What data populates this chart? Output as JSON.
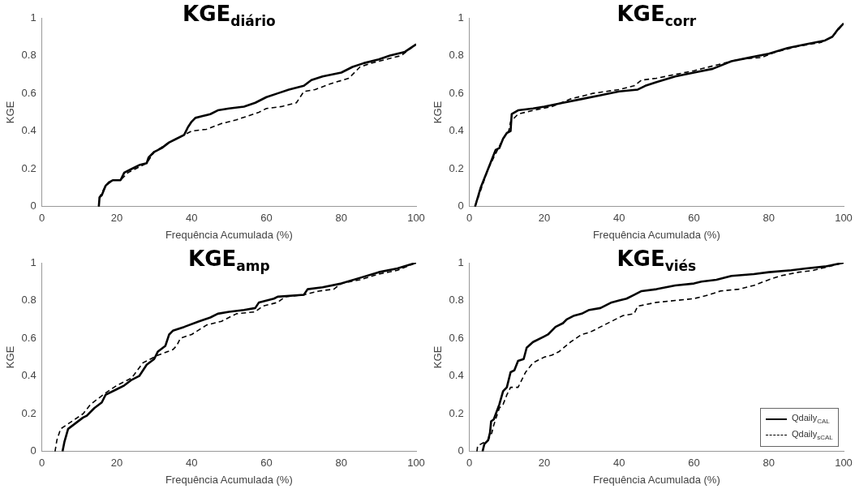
{
  "chart_data": [
    {
      "type": "line",
      "title": "KGE$_{diário}$",
      "xlabel": "Frequência Acumulada (%)",
      "ylabel": "KGE",
      "xlim": [
        0,
        100
      ],
      "ylim": [
        0,
        1
      ],
      "xticks": [
        0,
        20,
        40,
        60,
        80,
        100
      ],
      "yticks": [
        0,
        0.2,
        0.4,
        0.6,
        0.8,
        1
      ],
      "grid": false,
      "legend": false,
      "series": [
        {
          "color": "#000000",
          "line_style": "solid",
          "x": [
            15.2,
            15.4,
            16,
            17,
            18,
            19,
            21,
            22,
            24,
            26,
            28,
            28.5,
            30,
            32,
            34,
            36,
            38,
            39,
            40,
            41,
            43,
            45,
            47,
            50,
            54,
            57,
            60,
            63,
            66,
            70,
            72,
            75,
            80,
            83,
            86,
            90,
            93,
            97,
            100
          ],
          "values": [
            0,
            0.05,
            0.06,
            0.11,
            0.13,
            0.14,
            0.14,
            0.18,
            0.2,
            0.22,
            0.23,
            0.26,
            0.29,
            0.31,
            0.34,
            0.36,
            0.38,
            0.42,
            0.45,
            0.47,
            0.48,
            0.49,
            0.51,
            0.52,
            0.53,
            0.55,
            0.58,
            0.6,
            0.62,
            0.64,
            0.67,
            0.69,
            0.71,
            0.74,
            0.76,
            0.78,
            0.8,
            0.82,
            0.86
          ]
        },
        {
          "color": "#000000",
          "line_style": "dashed",
          "x": [
            15.2,
            15.4,
            17,
            19,
            21,
            23,
            25,
            28,
            30,
            34,
            38,
            40,
            44,
            48,
            52,
            55,
            58,
            60,
            64,
            68,
            70,
            73,
            77,
            82,
            85,
            88,
            92,
            96,
            100
          ],
          "values": [
            0,
            0.05,
            0.11,
            0.14,
            0.14,
            0.18,
            0.2,
            0.23,
            0.29,
            0.34,
            0.38,
            0.4,
            0.41,
            0.44,
            0.46,
            0.48,
            0.5,
            0.52,
            0.53,
            0.55,
            0.61,
            0.62,
            0.65,
            0.68,
            0.74,
            0.76,
            0.78,
            0.8,
            0.86
          ]
        }
      ]
    },
    {
      "type": "line",
      "title": "KGE$_{corr}$",
      "xlabel": "Frequência Acumulada (%)",
      "ylabel": "KGE",
      "xlim": [
        0,
        100
      ],
      "ylim": [
        0,
        1
      ],
      "xticks": [
        0,
        20,
        40,
        60,
        80,
        100
      ],
      "yticks": [
        0,
        0.2,
        0.4,
        0.6,
        0.8,
        1
      ],
      "grid": false,
      "legend": false,
      "series": [
        {
          "color": "#000000",
          "line_style": "solid",
          "x": [
            1.5,
            3,
            5,
            7,
            8,
            9,
            10,
            11,
            11.3,
            13,
            17,
            20,
            25,
            30,
            35,
            40,
            45,
            47,
            50,
            55,
            60,
            65,
            70,
            75,
            80,
            85,
            90,
            95,
            97,
            98.5,
            100
          ],
          "values": [
            0,
            0.1,
            0.2,
            0.3,
            0.31,
            0.36,
            0.39,
            0.4,
            0.49,
            0.51,
            0.52,
            0.53,
            0.55,
            0.57,
            0.59,
            0.61,
            0.62,
            0.64,
            0.66,
            0.69,
            0.71,
            0.73,
            0.77,
            0.79,
            0.81,
            0.84,
            0.86,
            0.88,
            0.9,
            0.94,
            0.97
          ]
        },
        {
          "color": "#000000",
          "line_style": "dashed",
          "x": [
            1.5,
            5,
            9,
            10.5,
            11,
            13,
            17,
            22,
            27,
            33,
            40,
            44,
            46,
            50,
            55,
            60,
            66,
            72,
            78,
            82,
            88,
            94,
            97,
            100
          ],
          "values": [
            0,
            0.2,
            0.36,
            0.4,
            0.45,
            0.49,
            0.51,
            0.53,
            0.57,
            0.6,
            0.62,
            0.64,
            0.67,
            0.68,
            0.7,
            0.72,
            0.75,
            0.78,
            0.79,
            0.82,
            0.85,
            0.87,
            0.9,
            0.97
          ]
        }
      ]
    },
    {
      "type": "line",
      "title": "KGE$_{amp}$",
      "xlabel": "Frequência Acumulada (%)",
      "ylabel": "KGE",
      "xlim": [
        0,
        100
      ],
      "ylim": [
        0,
        1
      ],
      "xticks": [
        0,
        20,
        40,
        60,
        80,
        100
      ],
      "yticks": [
        0,
        0.2,
        0.4,
        0.6,
        0.8,
        1
      ],
      "grid": false,
      "legend": false,
      "series": [
        {
          "color": "#000000",
          "line_style": "solid",
          "x": [
            5.5,
            6,
            7,
            9,
            11,
            12,
            14,
            16,
            17,
            20,
            22,
            24,
            26,
            28,
            30,
            31,
            33,
            34,
            35,
            38,
            42,
            45,
            47,
            50,
            54,
            57,
            58,
            62,
            63,
            70,
            71,
            75,
            80,
            85,
            90,
            95,
            100
          ],
          "values": [
            0,
            0.05,
            0.12,
            0.15,
            0.18,
            0.19,
            0.23,
            0.26,
            0.3,
            0.33,
            0.35,
            0.38,
            0.4,
            0.46,
            0.49,
            0.53,
            0.56,
            0.62,
            0.64,
            0.66,
            0.69,
            0.71,
            0.73,
            0.74,
            0.75,
            0.76,
            0.79,
            0.81,
            0.82,
            0.83,
            0.86,
            0.87,
            0.89,
            0.92,
            0.95,
            0.97,
            1
          ]
        },
        {
          "color": "#000000",
          "line_style": "dashed",
          "x": [
            3.5,
            4,
            5,
            8,
            11,
            13,
            15,
            17,
            20,
            24,
            27,
            29,
            31,
            35,
            36,
            37,
            40,
            44,
            48,
            52,
            57,
            59,
            63,
            65,
            70,
            74,
            78,
            80,
            85,
            90,
            95,
            100
          ],
          "values": [
            0,
            0.06,
            0.12,
            0.16,
            0.2,
            0.25,
            0.28,
            0.31,
            0.35,
            0.39,
            0.47,
            0.49,
            0.51,
            0.54,
            0.56,
            0.6,
            0.62,
            0.67,
            0.69,
            0.73,
            0.74,
            0.77,
            0.79,
            0.82,
            0.83,
            0.85,
            0.86,
            0.89,
            0.91,
            0.94,
            0.96,
            1
          ]
        }
      ]
    },
    {
      "type": "line",
      "title": "KGE$_{viés}$",
      "xlabel": "Frequência Acumulada (%)",
      "ylabel": "KGE",
      "xlim": [
        0,
        100
      ],
      "ylim": [
        0,
        1
      ],
      "xticks": [
        0,
        20,
        40,
        60,
        80,
        100
      ],
      "yticks": [
        0,
        0.2,
        0.4,
        0.6,
        0.8,
        1
      ],
      "grid": false,
      "legend": "bottom right",
      "series": [
        {
          "name": "Qdaily$_{CAL}$",
          "color": "#000000",
          "line_style": "solid",
          "x": [
            3.5,
            4,
            5,
            5.5,
            5.8,
            6.5,
            8,
            9,
            10,
            11,
            12,
            13,
            14.5,
            15.3,
            17,
            20,
            21,
            23,
            25,
            26,
            28,
            30,
            32,
            35,
            38,
            40,
            42,
            44,
            46,
            50,
            55,
            60,
            62,
            66,
            70,
            76,
            80,
            86,
            90,
            95,
            100
          ],
          "values": [
            0,
            0.04,
            0.06,
            0.1,
            0.16,
            0.17,
            0.25,
            0.32,
            0.34,
            0.42,
            0.43,
            0.48,
            0.49,
            0.55,
            0.58,
            0.61,
            0.62,
            0.66,
            0.68,
            0.7,
            0.72,
            0.73,
            0.75,
            0.76,
            0.79,
            0.8,
            0.81,
            0.83,
            0.85,
            0.86,
            0.88,
            0.89,
            0.9,
            0.91,
            0.93,
            0.94,
            0.95,
            0.96,
            0.97,
            0.98,
            1
          ]
        },
        {
          "name": "Qdaily$_{sCAL}$",
          "color": "#000000",
          "line_style": "dashed",
          "x": [
            2,
            2.2,
            5,
            6,
            6.5,
            8,
            9,
            10,
            11,
            13,
            15,
            17,
            20,
            22,
            24,
            27,
            30,
            32,
            35,
            38,
            41,
            44,
            45,
            50,
            55,
            60,
            64,
            67,
            72,
            76,
            80,
            83,
            88,
            92,
            96,
            100
          ],
          "values": [
            0,
            0.03,
            0.06,
            0.1,
            0.14,
            0.23,
            0.25,
            0.3,
            0.34,
            0.34,
            0.42,
            0.47,
            0.5,
            0.51,
            0.53,
            0.58,
            0.62,
            0.63,
            0.66,
            0.69,
            0.72,
            0.73,
            0.77,
            0.79,
            0.8,
            0.81,
            0.83,
            0.85,
            0.86,
            0.88,
            0.91,
            0.93,
            0.95,
            0.96,
            0.98,
            1
          ]
        }
      ]
    }
  ]
}
